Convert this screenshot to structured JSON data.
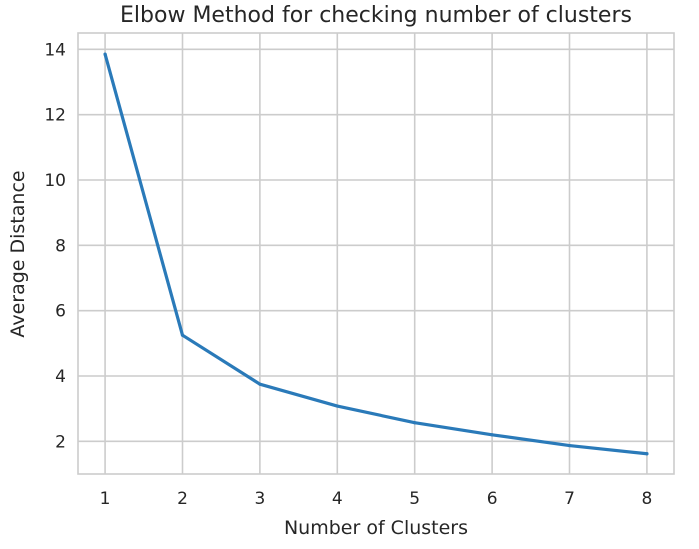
{
  "chart_data": {
    "type": "line",
    "title": "Elbow Method for checking number of clusters",
    "xlabel": "Number of Clusters",
    "ylabel": "Average Distance",
    "x": [
      1,
      2,
      3,
      4,
      5,
      6,
      7,
      8
    ],
    "series": [
      {
        "name": "Average Distance",
        "values": [
          13.85,
          5.25,
          3.75,
          3.08,
          2.57,
          2.2,
          1.87,
          1.62
        ],
        "color": "#2a7ab9"
      }
    ],
    "xticks": [
      "1",
      "2",
      "3",
      "4",
      "5",
      "6",
      "7",
      "8"
    ],
    "yticks": [
      "2",
      "4",
      "6",
      "8",
      "10",
      "12",
      "14"
    ],
    "xlim": [
      0.65,
      8.35
    ],
    "ylim": [
      1.0,
      14.5
    ],
    "grid": true,
    "gridColor": "#cccccc",
    "background": "#ffffff"
  }
}
